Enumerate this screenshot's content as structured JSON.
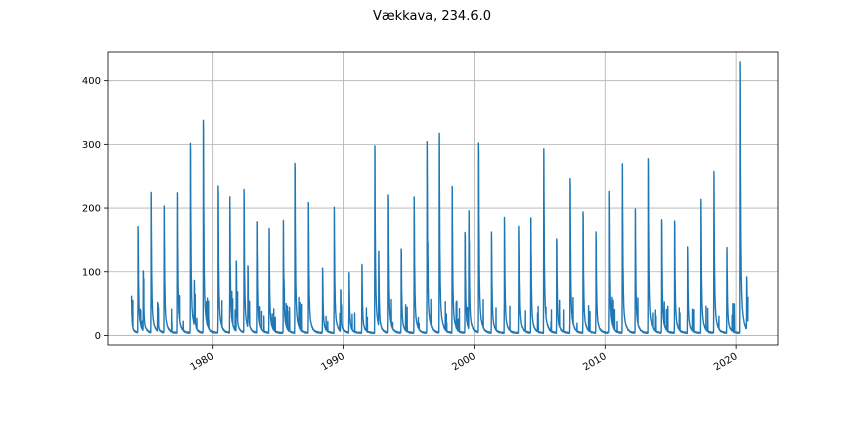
{
  "chart_data": {
    "type": "line",
    "title": "Vækkava, 234.6.0",
    "xlabel": "",
    "ylabel": "",
    "xlim": [
      1972.0,
      2023.2
    ],
    "ylim": [
      -15,
      445
    ],
    "grid": true,
    "x_ticks": [
      1980,
      1990,
      2000,
      2010,
      2020
    ],
    "y_ticks": [
      0,
      100,
      200,
      300,
      400
    ],
    "x_tick_labels": [
      "1980",
      "1990",
      "2000",
      "2010",
      "2020"
    ],
    "y_tick_labels": [
      "0",
      "100",
      "200",
      "300",
      "400"
    ],
    "series": [
      {
        "name": "",
        "color": "#1f77b4",
        "start_year": 1973.8,
        "end_year": 2020.9,
        "peaks": [
          [
            1973.8,
            48
          ],
          [
            1974.3,
            167
          ],
          [
            1974.7,
            98
          ],
          [
            1975.3,
            220
          ],
          [
            1975.8,
            47
          ],
          [
            1976.3,
            200
          ],
          [
            1977.3,
            221
          ],
          [
            1978.3,
            297
          ],
          [
            1978.6,
            82
          ],
          [
            1979.3,
            333
          ],
          [
            1980.4,
            230
          ],
          [
            1981.3,
            214
          ],
          [
            1981.8,
            113
          ],
          [
            1982.4,
            226
          ],
          [
            1982.7,
            105
          ],
          [
            1983.4,
            175
          ],
          [
            1984.3,
            165
          ],
          [
            1985.4,
            176
          ],
          [
            1986.3,
            266
          ],
          [
            1987.3,
            205
          ],
          [
            1988.4,
            102
          ],
          [
            1989.3,
            197
          ],
          [
            1989.8,
            68
          ],
          [
            1990.4,
            94
          ],
          [
            1991.4,
            108
          ],
          [
            1992.4,
            293
          ],
          [
            1992.7,
            129
          ],
          [
            1993.4,
            217
          ],
          [
            1994.4,
            132
          ],
          [
            1995.4,
            214
          ],
          [
            1996.4,
            300
          ],
          [
            1997.3,
            313
          ],
          [
            1998.3,
            230
          ],
          [
            1999.3,
            158
          ],
          [
            1999.6,
            191
          ],
          [
            2000.3,
            298
          ],
          [
            2001.3,
            158
          ],
          [
            2002.3,
            182
          ],
          [
            2003.4,
            168
          ],
          [
            2004.3,
            181
          ],
          [
            2005.3,
            290
          ],
          [
            2006.3,
            147
          ],
          [
            2007.3,
            243
          ],
          [
            2008.3,
            190
          ],
          [
            2009.3,
            158
          ],
          [
            2010.3,
            222
          ],
          [
            2011.3,
            266
          ],
          [
            2012.3,
            195
          ],
          [
            2013.3,
            274
          ],
          [
            2014.3,
            177
          ],
          [
            2015.3,
            176
          ],
          [
            2016.3,
            136
          ],
          [
            2017.3,
            210
          ],
          [
            2018.3,
            254
          ],
          [
            2019.3,
            134
          ],
          [
            2020.3,
            425
          ],
          [
            2020.8,
            88
          ]
        ]
      }
    ]
  }
}
